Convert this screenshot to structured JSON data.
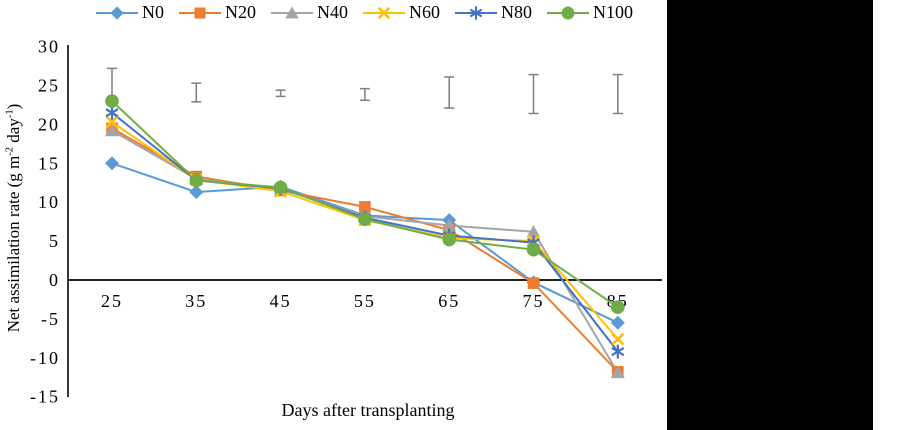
{
  "figure": {
    "background_color": "#FFFFFF",
    "side_panel_color": "#000000",
    "axis_color": "#000000",
    "text_color": "#000000"
  },
  "chart_data": {
    "type": "line",
    "title": "",
    "xlabel": "Days after transplanting",
    "ylabel": "Net assimilation rate (g m⁻² day⁻¹)",
    "ylabel_parts": {
      "prefix": "Net assimilation rate (g m",
      "sup1": "-2",
      "mid": " day",
      "sup2": "-1",
      "suffix": ")"
    },
    "x": [
      25,
      35,
      45,
      55,
      65,
      75,
      85
    ],
    "xticks": [
      "25",
      "35",
      "45",
      "55",
      "65",
      "75",
      "85"
    ],
    "yticks": [
      "30",
      "25",
      "20",
      "15",
      "10",
      "5",
      "0",
      "-5",
      "-10",
      "-15"
    ],
    "ylim": [
      -15,
      30
    ],
    "ytick_step": 5,
    "grid": false,
    "legend_position": "top",
    "series": [
      {
        "name": "N0",
        "marker": "diamond",
        "color": "#5B9BD5",
        "values": [
          15.0,
          11.3,
          12.0,
          8.3,
          7.7,
          -0.3,
          -5.5
        ]
      },
      {
        "name": "N20",
        "marker": "square",
        "color": "#ED7D31",
        "values": [
          19.5,
          13.3,
          11.5,
          9.4,
          6.4,
          -0.4,
          -11.8
        ]
      },
      {
        "name": "N40",
        "marker": "triangle",
        "color": "#A5A5A5",
        "values": [
          19.2,
          13.0,
          11.7,
          8.2,
          7.0,
          6.2,
          -11.9
        ]
      },
      {
        "name": "N60",
        "marker": "xmark",
        "color": "#FFC000",
        "values": [
          20.3,
          12.9,
          11.4,
          7.7,
          5.4,
          5.0,
          -7.6
        ]
      },
      {
        "name": "N80",
        "marker": "asterisk",
        "color": "#4472C4",
        "values": [
          21.5,
          12.8,
          11.8,
          8.0,
          5.7,
          4.8,
          -9.2
        ]
      },
      {
        "name": "N100",
        "marker": "circle",
        "color": "#70AD47",
        "values": [
          23.0,
          12.8,
          11.9,
          7.8,
          5.2,
          3.9,
          -3.5
        ]
      }
    ],
    "error_bars": {
      "color": "#7F7F7F",
      "points": [
        {
          "x": 25,
          "low": 23.1,
          "high": 27.2
        },
        {
          "x": 35,
          "low": 22.9,
          "high": 25.3
        },
        {
          "x": 45,
          "low": 23.6,
          "high": 24.4
        },
        {
          "x": 55,
          "low": 23.1,
          "high": 24.6
        },
        {
          "x": 65,
          "low": 22.1,
          "high": 26.1
        },
        {
          "x": 75,
          "low": 21.4,
          "high": 26.4
        },
        {
          "x": 85,
          "low": 21.4,
          "high": 26.4
        }
      ]
    }
  }
}
